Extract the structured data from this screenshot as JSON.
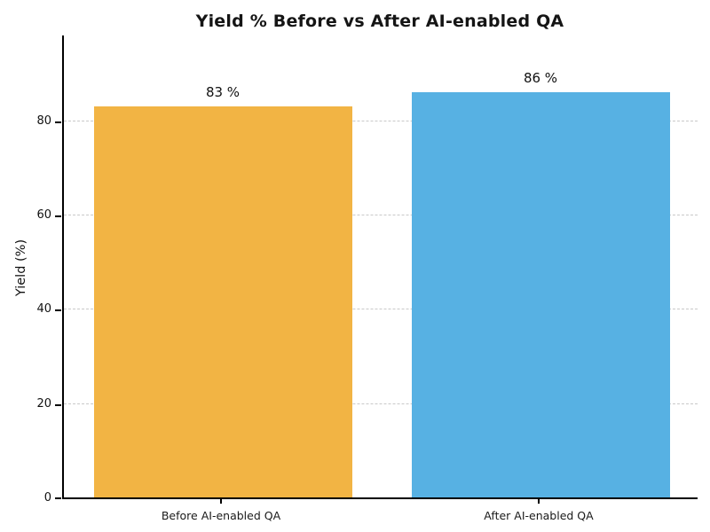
{
  "chart_data": {
    "type": "bar",
    "title": "Yield % Before vs After AI-enabled QA",
    "xlabel": "",
    "ylabel": "Yield (%)",
    "categories": [
      "Before AI-enabled QA",
      "After AI-enabled QA"
    ],
    "values": [
      83,
      86
    ],
    "value_labels": [
      "83 %",
      "86 %"
    ],
    "bar_colors": [
      "#F2B444",
      "#57B1E3"
    ],
    "yticks": [
      0,
      20,
      40,
      60,
      80
    ],
    "ylim": [
      0,
      98.4
    ],
    "grid": "horizontal-dashed",
    "grid_color": "#c9c9c9",
    "legend": "none",
    "spines": [
      "left",
      "bottom"
    ]
  }
}
